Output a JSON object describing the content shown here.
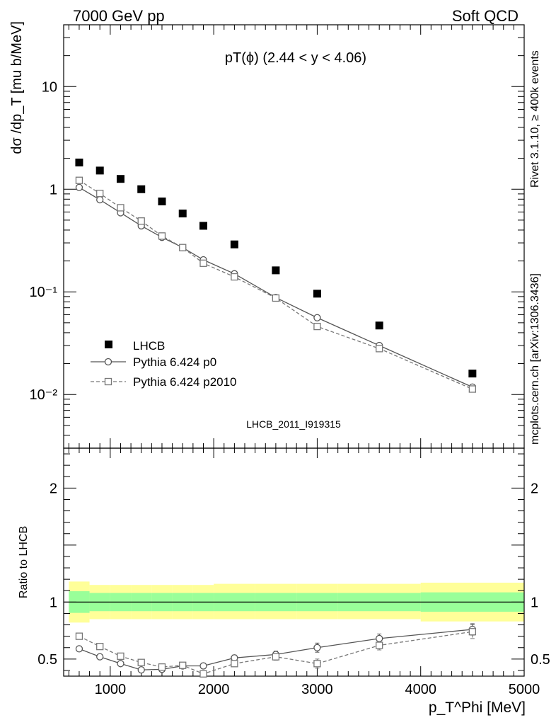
{
  "header": {
    "left": "7000 GeV pp",
    "right": "Soft QCD"
  },
  "side": {
    "rivet": "Rivet 3.1.10, ≥ 400k events",
    "mcplots": "mcplots.cern.ch [arXiv:1306.3436]"
  },
  "watermark": "LHCB_2011_I919315",
  "colors": {
    "data": "#000000",
    "p0": "#555555",
    "p2010": "#777777",
    "band_inner": "#99ff99",
    "band_outer": "#ffff99"
  },
  "chart_data": [
    {
      "type": "scatter",
      "title": "pT(ϕ) (2.44 < y < 4.06)",
      "ylabel": "dσ /dp_T [mu b/MeV]",
      "xlabel": "p_T^Phi [MeV]",
      "xlim": [
        550,
        5000
      ],
      "ylim": [
        0.003,
        40
      ],
      "yscale": "log",
      "yticks": [
        "10⁻²",
        "10⁻¹",
        "1",
        "10"
      ],
      "xticks": [
        "1000",
        "2000",
        "3000",
        "4000",
        "5000"
      ],
      "legend_position": "middle-left",
      "x": [
        700,
        900,
        1100,
        1300,
        1500,
        1700,
        1900,
        2200,
        2600,
        3000,
        3600,
        4500
      ],
      "series": [
        {
          "name": "LHCB",
          "marker": "filled-square",
          "values": [
            1.82,
            1.52,
            1.26,
            1.0,
            0.76,
            0.58,
            0.44,
            0.29,
            0.162,
            0.096,
            0.047,
            0.016
          ]
        },
        {
          "name": "Pythia 6.424 p0",
          "marker": "open-circle",
          "line": "solid",
          "values": [
            1.04,
            0.79,
            0.59,
            0.44,
            0.34,
            0.27,
            0.205,
            0.15,
            0.088,
            0.056,
            0.03,
            0.0118
          ]
        },
        {
          "name": "Pythia 6.424 p2010",
          "marker": "open-square",
          "line": "dashed",
          "values": [
            1.22,
            0.91,
            0.66,
            0.49,
            0.35,
            0.27,
            0.19,
            0.14,
            0.087,
            0.046,
            0.028,
            0.0113
          ]
        }
      ]
    },
    {
      "type": "line",
      "ylabel": "Ratio to LHCB",
      "xlabel": "p_T^Phi [MeV]",
      "xlim": [
        550,
        5000
      ],
      "ylim": [
        0.35,
        2.35
      ],
      "yticks": [
        "0.5",
        "1",
        "2"
      ],
      "xticks": [
        "1000",
        "2000",
        "3000",
        "4000",
        "5000"
      ],
      "x": [
        700,
        900,
        1100,
        1300,
        1500,
        1700,
        1900,
        2200,
        2600,
        3000,
        3600,
        4500
      ],
      "bands": {
        "segments": [
          600,
          800,
          1000,
          1200,
          1400,
          1600,
          1800,
          2000,
          2400,
          2800,
          3200,
          4000,
          5000
        ],
        "inner_low": [
          0.905,
          0.92,
          0.92,
          0.92,
          0.92,
          0.92,
          0.92,
          0.92,
          0.92,
          0.92,
          0.92,
          0.915
        ],
        "inner_high": [
          1.095,
          1.08,
          1.08,
          1.08,
          1.08,
          1.08,
          1.08,
          1.08,
          1.08,
          1.08,
          1.08,
          1.085
        ],
        "outer_low": [
          0.82,
          0.85,
          0.85,
          0.85,
          0.85,
          0.85,
          0.85,
          0.85,
          0.85,
          0.85,
          0.85,
          0.83
        ],
        "outer_high": [
          1.18,
          1.15,
          1.15,
          1.15,
          1.15,
          1.15,
          1.15,
          1.16,
          1.16,
          1.16,
          1.16,
          1.17
        ]
      },
      "series": [
        {
          "name": "Pythia 6.424 p0",
          "values": [
            0.59,
            0.52,
            0.46,
            0.405,
            0.41,
            0.44,
            0.44,
            0.51,
            0.54,
            0.6,
            0.68,
            0.76
          ],
          "errors": [
            0.01,
            0.01,
            0.01,
            0.012,
            0.015,
            0.02,
            0.025,
            0.025,
            0.03,
            0.04,
            0.04,
            0.05
          ]
        },
        {
          "name": "Pythia 6.424 p2010",
          "values": [
            0.7,
            0.61,
            0.525,
            0.47,
            0.43,
            0.445,
            0.37,
            0.46,
            0.52,
            0.46,
            0.62,
            0.74
          ],
          "errors": [
            0.01,
            0.01,
            0.012,
            0.015,
            0.02,
            0.02,
            0.025,
            0.025,
            0.03,
            0.04,
            0.04,
            0.06
          ]
        }
      ]
    }
  ]
}
